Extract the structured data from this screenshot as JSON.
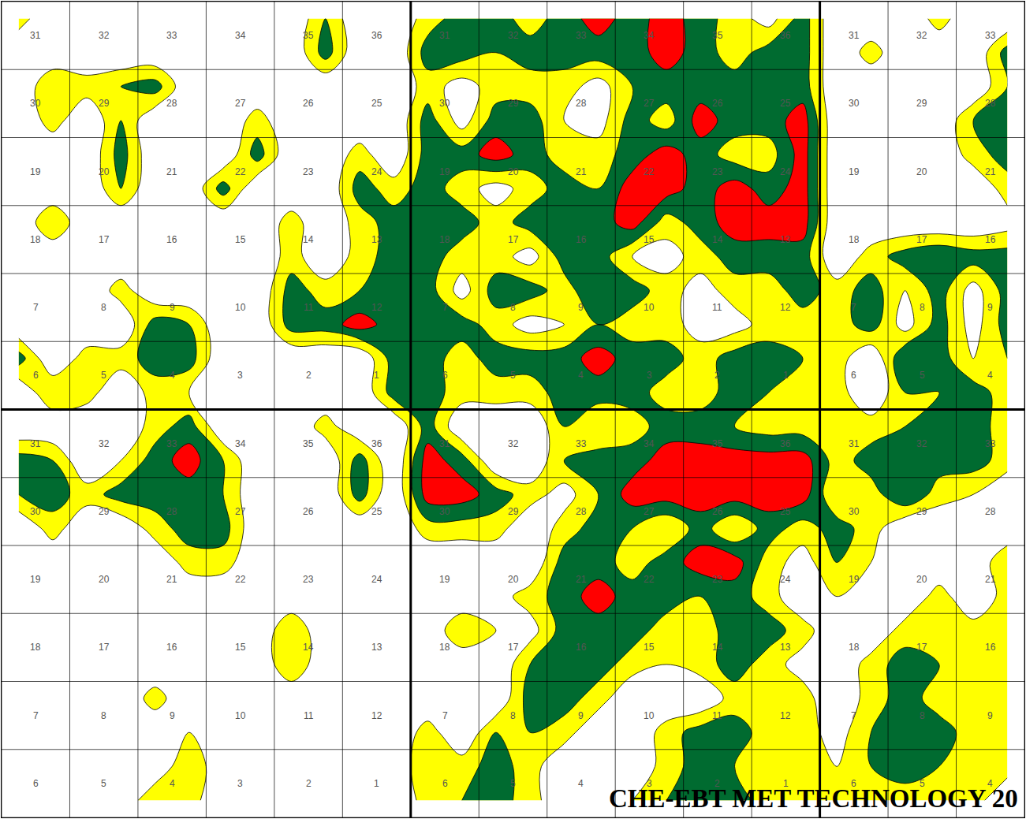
{
  "chart_data": {
    "type": "contour",
    "x": [
      0.25,
      0.75,
      1.25,
      1.75,
      2.25,
      2.75,
      3.25,
      3.75,
      4.25,
      4.75,
      5.25,
      5.75,
      6.25,
      6.75,
      7.25,
      7.75,
      8.25,
      8.75,
      9.25,
      9.75,
      10.25,
      10.75,
      11.25,
      11.75,
      12.25,
      12.75,
      13.25,
      13.75,
      14.25,
      14.75
    ],
    "y": [
      11.75,
      11.25,
      10.75,
      10.25,
      9.75,
      9.25,
      8.75,
      8.25,
      7.75,
      7.25,
      6.75,
      6.25,
      5.75,
      5.25,
      4.75,
      4.25,
      3.75,
      3.25,
      2.75,
      2.25,
      1.75,
      1.25,
      0.75,
      0.25
    ],
    "z": [
      [
        1.5,
        0,
        0,
        0,
        0,
        0,
        0,
        1,
        0,
        2,
        0,
        0,
        1.5,
        2.5,
        2.5,
        1.5,
        2.5,
        3.5,
        2.5,
        3.5,
        2.5,
        1.5,
        0.5,
        2.5,
        0,
        0,
        0,
        1.5,
        0,
        0
      ],
      [
        0,
        0,
        0,
        0,
        0,
        0,
        0,
        0,
        0,
        2.5,
        0,
        0,
        2.5,
        2.5,
        2,
        2.5,
        2.5,
        2.5,
        2.5,
        3.5,
        2.5,
        1.5,
        2.5,
        2.5,
        0,
        1.5,
        0,
        0,
        0,
        2.5
      ],
      [
        0,
        2,
        1.5,
        2,
        2.5,
        0,
        0,
        0,
        0,
        0,
        0,
        0,
        1.5,
        0.5,
        1.5,
        1.5,
        1.5,
        0.5,
        2,
        2.5,
        2.5,
        2.5,
        2.5,
        2.5,
        0,
        0,
        0,
        0,
        0,
        2
      ],
      [
        0,
        1.5,
        0,
        2,
        0,
        0,
        0,
        1.5,
        0,
        0,
        0,
        0,
        2.5,
        0.5,
        2.5,
        2.5,
        1,
        0.5,
        2.5,
        1.5,
        3.5,
        2.5,
        2.5,
        3.5,
        0,
        0,
        0,
        0,
        2,
        2.5
      ],
      [
        0,
        0,
        0,
        2.5,
        0,
        0,
        0,
        2.5,
        0,
        0,
        1.5,
        0,
        2.5,
        2.5,
        3.5,
        2.5,
        1.5,
        1.5,
        2.5,
        3.5,
        2.5,
        1.5,
        1.5,
        3.5,
        0,
        0,
        0,
        0,
        1.5,
        2.5
      ],
      [
        0,
        0,
        0,
        2,
        0,
        0,
        2.5,
        0,
        0,
        0,
        2.5,
        1.5,
        2.5,
        1.5,
        0.5,
        1.5,
        2.5,
        2,
        3.5,
        3.5,
        2.5,
        3.5,
        2.5,
        3.5,
        0,
        0,
        0,
        0,
        0,
        1.5
      ],
      [
        0,
        2,
        0,
        0,
        0,
        0,
        0,
        0,
        1.5,
        0,
        1.5,
        2.5,
        2.5,
        2.5,
        1.5,
        2.5,
        2.5,
        2.5,
        3.5,
        1.5,
        2.5,
        3.5,
        3.5,
        3.5,
        0,
        0,
        0,
        0,
        0,
        0.5
      ],
      [
        0,
        0,
        0,
        0,
        0,
        0,
        0,
        0,
        1.5,
        0,
        1.5,
        2.5,
        2.5,
        1.5,
        1.5,
        0.5,
        2.5,
        2.5,
        1,
        0.5,
        1.5,
        2.5,
        2.5,
        2.5,
        0,
        1.5,
        2.5,
        3,
        2.5,
        2.5
      ],
      [
        0,
        0,
        0,
        1.5,
        0,
        0,
        0,
        0,
        2.5,
        1.5,
        2,
        2.5,
        2.5,
        0.5,
        2.5,
        2.5,
        1.5,
        3,
        2.5,
        1.5,
        0.5,
        1.5,
        1.5,
        2.5,
        1.5,
        2.5,
        1,
        2.5,
        0.5,
        2.5
      ],
      [
        0,
        0,
        0,
        0,
        2.5,
        2,
        0,
        0,
        2.5,
        2.5,
        3.5,
        2.5,
        2.5,
        2.5,
        1.5,
        0.5,
        1,
        2,
        1.5,
        1.5,
        0.5,
        0.5,
        1.5,
        1.5,
        1.5,
        2.5,
        0.5,
        2.5,
        0.5,
        2.5
      ],
      [
        2.5,
        0,
        1.5,
        1.5,
        2.5,
        2.5,
        0,
        0,
        0,
        0,
        0,
        2.5,
        2.5,
        1.5,
        2.5,
        2.5,
        2.5,
        3.5,
        2.5,
        2.5,
        1.5,
        2.5,
        2.5,
        2,
        1.5,
        0,
        3,
        2.5,
        1,
        2
      ],
      [
        0,
        2,
        1.5,
        0,
        1.5,
        1,
        0,
        0,
        0,
        0,
        0,
        2.5,
        2.5,
        1.5,
        1.5,
        1.5,
        2.5,
        2.5,
        2.5,
        1.5,
        1.5,
        2.5,
        2,
        1.5,
        1.5,
        0,
        2,
        2,
        2.5,
        1.5
      ],
      [
        0,
        0,
        0,
        0,
        1.5,
        2.5,
        0,
        0,
        0,
        1.5,
        0,
        0,
        2.5,
        0,
        0,
        0,
        2,
        1,
        1.5,
        2.5,
        2.5,
        2,
        1.5,
        1.5,
        1.5,
        1.5,
        2,
        2.5,
        2.5,
        1.5
      ],
      [
        2.5,
        2,
        0,
        1,
        2.5,
        3.5,
        2,
        0,
        0,
        0,
        2.5,
        0,
        3.5,
        2.5,
        0,
        0,
        2,
        2.5,
        2.5,
        3.5,
        3.5,
        3.5,
        3.5,
        3.5,
        1.5,
        2.5,
        2.5,
        2.5,
        2.5,
        1.5
      ],
      [
        2,
        2.5,
        1.5,
        2.5,
        2.5,
        2.5,
        2,
        0,
        0,
        0,
        2.5,
        0,
        3.5,
        3.5,
        2.5,
        1.5,
        0.5,
        2,
        3.5,
        3.5,
        3.5,
        3.5,
        3.5,
        3.5,
        1,
        1.5,
        3,
        1.5,
        1,
        0
      ],
      [
        0,
        1.5,
        0,
        0,
        1.5,
        2.5,
        2.5,
        0,
        0.5,
        0,
        0,
        0,
        1.5,
        1.5,
        1.5,
        0,
        1.5,
        2.5,
        2,
        1,
        2.5,
        1,
        2.5,
        1.5,
        2.5,
        1.5,
        0,
        0,
        0,
        0
      ],
      [
        0,
        0,
        0,
        0,
        0,
        1.5,
        1.5,
        0,
        0,
        0,
        0,
        0,
        0,
        0,
        0,
        0,
        2.5,
        2.5,
        1.5,
        2.5,
        3.5,
        3.5,
        1.5,
        0.5,
        2,
        1,
        0,
        0,
        0,
        2
      ],
      [
        0,
        0,
        0,
        0,
        0,
        0,
        0,
        0,
        0,
        0,
        0,
        0,
        0,
        0,
        0.5,
        1.5,
        2.5,
        3.5,
        2.5,
        2.5,
        2,
        2.5,
        1.5,
        0,
        1,
        0,
        0,
        1.5,
        0,
        1.5
      ],
      [
        0,
        0,
        0,
        0,
        0,
        0,
        0,
        0,
        2,
        0,
        0,
        0,
        0,
        2,
        1,
        0.5,
        2.5,
        2.5,
        2.5,
        1.5,
        1.5,
        2.5,
        2.5,
        1.5,
        0,
        0,
        1.5,
        2,
        1.5,
        1.5
      ],
      [
        0,
        1,
        0,
        0,
        0,
        0,
        0,
        0,
        2,
        0,
        0,
        0,
        0,
        0,
        0,
        2,
        2.5,
        2.5,
        1.5,
        1,
        1.5,
        2.5,
        1.5,
        0.5,
        0,
        1.5,
        2.5,
        2,
        2,
        2
      ],
      [
        0,
        0,
        0,
        0,
        1.5,
        0,
        0,
        0,
        0,
        0,
        0,
        0,
        0,
        0,
        0,
        2.5,
        2.5,
        1.5,
        0,
        0,
        0,
        1.5,
        2,
        1.5,
        0,
        1.5,
        2.5,
        1.5,
        2,
        2
      ],
      [
        0,
        0,
        0,
        0,
        0,
        1,
        1,
        0,
        0,
        0,
        0,
        0,
        1.5,
        0,
        2,
        2,
        1.5,
        0,
        0,
        1.5,
        2.5,
        2.5,
        1.5,
        1.5,
        0.5,
        2,
        2.5,
        2.5,
        1.5,
        1.5
      ],
      [
        0,
        0,
        0,
        0,
        0,
        2,
        0,
        0,
        0,
        0,
        0,
        0,
        2,
        1.5,
        2.5,
        1.5,
        0,
        0,
        0,
        1.5,
        2.5,
        2,
        1.5,
        1.5,
        1,
        2,
        2.5,
        2,
        1.5,
        1.5
      ],
      [
        0,
        0,
        0,
        0,
        2,
        1.5,
        0,
        0,
        0,
        0,
        0,
        0,
        1.5,
        2,
        2.5,
        1.5,
        0,
        0,
        1,
        2,
        2.5,
        2.5,
        1.5,
        1.5,
        1.5,
        2,
        1.5,
        2,
        1.5,
        0
      ]
    ],
    "zlim": [
      0,
      4
    ],
    "levels": [
      1,
      2,
      3
    ],
    "colors": [
      "#ffffff",
      "#ffff00",
      "#006b30",
      "#ff0000"
    ],
    "xlim": [
      0,
      15
    ],
    "ylim": [
      0,
      12
    ],
    "xticks": [
      0,
      1,
      2,
      3,
      4,
      5,
      6,
      7,
      8,
      9,
      10,
      11,
      12,
      13,
      14,
      15
    ],
    "yticks": [
      0,
      1,
      2,
      3,
      4,
      5,
      6,
      7,
      8,
      9,
      10,
      11,
      12
    ],
    "grid": true,
    "tick_labels": false,
    "township_lines": {
      "x": [
        6,
        12
      ],
      "y": [
        6
      ]
    },
    "section_labels": [
      [
        31,
        32,
        33,
        34,
        35,
        36,
        31,
        32,
        33,
        34,
        35,
        36,
        31,
        32,
        33
      ],
      [
        30,
        29,
        28,
        27,
        26,
        25,
        30,
        29,
        28,
        27,
        26,
        25,
        30,
        29,
        28
      ],
      [
        19,
        20,
        21,
        22,
        23,
        24,
        19,
        20,
        21,
        22,
        23,
        24,
        19,
        20,
        21
      ],
      [
        18,
        17,
        16,
        15,
        14,
        13,
        18,
        17,
        16,
        15,
        14,
        13,
        18,
        17,
        16
      ],
      [
        7,
        8,
        9,
        10,
        11,
        12,
        7,
        8,
        9,
        10,
        11,
        12,
        7,
        8,
        9
      ],
      [
        6,
        5,
        4,
        3,
        2,
        1,
        6,
        5,
        4,
        3,
        2,
        1,
        6,
        5,
        4
      ],
      [
        31,
        32,
        33,
        34,
        35,
        36,
        31,
        32,
        33,
        34,
        35,
        36,
        31,
        32,
        33
      ],
      [
        30,
        29,
        28,
        27,
        26,
        25,
        30,
        29,
        28,
        27,
        26,
        25,
        30,
        29,
        28
      ],
      [
        19,
        20,
        21,
        22,
        23,
        24,
        19,
        20,
        21,
        22,
        23,
        24,
        19,
        20,
        21
      ],
      [
        18,
        17,
        16,
        15,
        14,
        13,
        18,
        17,
        16,
        15,
        14,
        13,
        18,
        17,
        16
      ],
      [
        7,
        8,
        9,
        10,
        11,
        12,
        7,
        8,
        9,
        10,
        11,
        12,
        7,
        8,
        9
      ],
      [
        6,
        5,
        4,
        3,
        2,
        1,
        6,
        5,
        4,
        3,
        2,
        1,
        6,
        5,
        4
      ]
    ],
    "annotations": [
      "CHE-EBT MET TECHNOLOGY 20"
    ]
  }
}
